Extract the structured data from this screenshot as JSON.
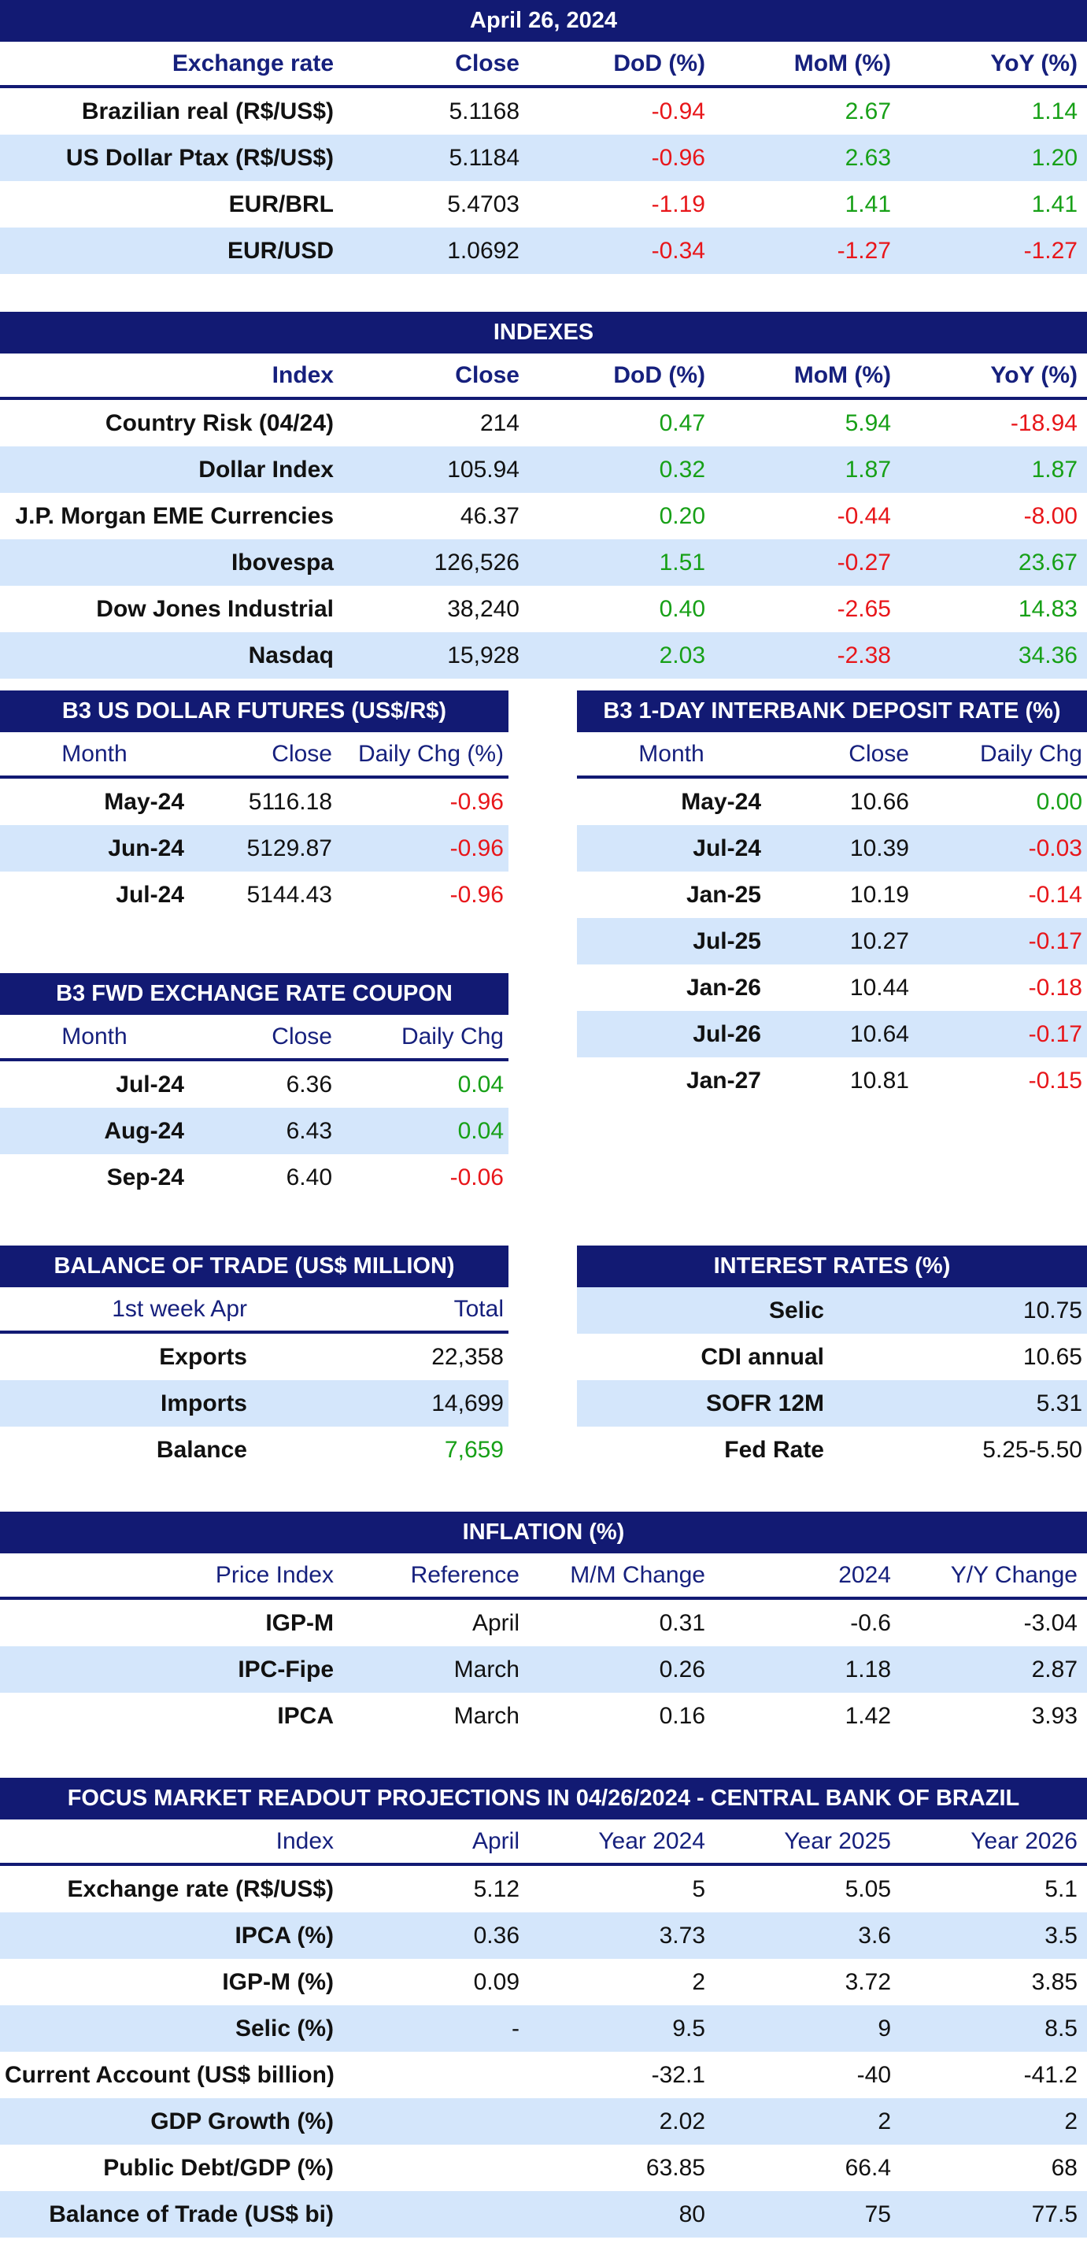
{
  "colors": {
    "header_bg": "#121a73",
    "row_alt": "#d4e6fb",
    "negative": "#e8161a",
    "positive": "#17a017"
  },
  "exchange": {
    "title": "April 26, 2024",
    "headers": [
      "Exchange rate",
      "Close",
      "DoD (%)",
      "MoM (%)",
      "YoY (%)"
    ],
    "rows": [
      [
        "Brazilian real (R$/US$)",
        "5.1168",
        "-0.94",
        "2.67",
        "1.14"
      ],
      [
        "US Dollar Ptax (R$/US$)",
        "5.1184",
        "-0.96",
        "2.63",
        "1.20"
      ],
      [
        "EUR/BRL",
        "5.4703",
        "-1.19",
        "1.41",
        "1.41"
      ],
      [
        "EUR/USD",
        "1.0692",
        "-0.34",
        "-1.27",
        "-1.27"
      ]
    ]
  },
  "indexes": {
    "title": "INDEXES",
    "headers": [
      "Index",
      "Close",
      "DoD (%)",
      "MoM (%)",
      "YoY (%)"
    ],
    "rows": [
      [
        "Country Risk (04/24)",
        "214",
        "0.47",
        "5.94",
        "-18.94"
      ],
      [
        "Dollar Index",
        "105.94",
        "0.32",
        "1.87",
        "1.87"
      ],
      [
        "J.P. Morgan EME Currencies",
        "46.37",
        "0.20",
        "-0.44",
        "-8.00"
      ],
      [
        "Ibovespa",
        "126,526",
        "1.51",
        "-0.27",
        "23.67"
      ],
      [
        "Dow Jones Industrial",
        "38,240",
        "0.40",
        "-2.65",
        "14.83"
      ],
      [
        "Nasdaq",
        "15,928",
        "2.03",
        "-2.38",
        "34.36"
      ]
    ]
  },
  "usd_futures": {
    "title": "B3 US DOLLAR FUTURES (US$/R$)",
    "headers": [
      "Month",
      "Close",
      "Daily Chg (%)"
    ],
    "rows": [
      [
        "May-24",
        "5116.18",
        "-0.96"
      ],
      [
        "Jun-24",
        "5129.87",
        "-0.96"
      ],
      [
        "Jul-24",
        "5144.43",
        "-0.96"
      ]
    ]
  },
  "di_rate": {
    "title": "B3 1-DAY INTERBANK DEPOSIT RATE (%)",
    "headers": [
      "Month",
      "Close",
      "Daily Chg"
    ],
    "rows": [
      [
        "May-24",
        "10.66",
        "0.00"
      ],
      [
        "Jul-24",
        "10.39",
        "-0.03"
      ],
      [
        "Jan-25",
        "10.19",
        "-0.14"
      ],
      [
        "Jul-25",
        "10.27",
        "-0.17"
      ],
      [
        "Jan-26",
        "10.44",
        "-0.18"
      ],
      [
        "Jul-26",
        "10.64",
        "-0.17"
      ],
      [
        "Jan-27",
        "10.81",
        "-0.15"
      ]
    ]
  },
  "fwd_coupon": {
    "title": "B3 FWD EXCHANGE RATE COUPON",
    "headers": [
      "Month",
      "Close",
      "Daily Chg"
    ],
    "rows": [
      [
        "Jul-24",
        "6.36",
        "0.04"
      ],
      [
        "Aug-24",
        "6.43",
        "0.04"
      ],
      [
        "Sep-24",
        "6.40",
        "-0.06"
      ]
    ]
  },
  "trade": {
    "title": "BALANCE OF TRADE (US$ MILLION)",
    "headers": [
      "1st week Apr",
      "Total"
    ],
    "rows": [
      [
        "Exports",
        "22,358"
      ],
      [
        "Imports",
        "14,699"
      ],
      [
        "Balance",
        "7,659"
      ]
    ]
  },
  "interest": {
    "title": "INTEREST RATES (%)",
    "rows": [
      [
        "Selic",
        "10.75"
      ],
      [
        "CDI annual",
        "10.65"
      ],
      [
        "SOFR 12M",
        "5.31"
      ],
      [
        "Fed Rate",
        "5.25-5.50"
      ]
    ]
  },
  "inflation": {
    "title": "INFLATION (%)",
    "headers": [
      "Price Index",
      "Reference",
      "M/M Change",
      "2024",
      "Y/Y Change"
    ],
    "rows": [
      [
        "IGP-M",
        "April",
        "0.31",
        "-0.6",
        "-3.04"
      ],
      [
        "IPC-Fipe",
        "March",
        "0.26",
        "1.18",
        "2.87"
      ],
      [
        "IPCA",
        "March",
        "0.16",
        "1.42",
        "3.93"
      ]
    ]
  },
  "focus": {
    "title": "FOCUS MARKET READOUT PROJECTIONS IN 04/26/2024 - CENTRAL BANK OF BRAZIL",
    "headers": [
      "Index",
      "April",
      "Year 2024",
      "Year 2025",
      "Year 2026"
    ],
    "rows": [
      [
        "Exchange rate (R$/US$)",
        "5.12",
        "5",
        "5.05",
        "5.1"
      ],
      [
        "IPCA (%)",
        "0.36",
        "3.73",
        "3.6",
        "3.5"
      ],
      [
        "IGP-M (%)",
        "0.09",
        "2",
        "3.72",
        "3.85"
      ],
      [
        "Selic (%)",
        "-",
        "9.5",
        "9",
        "8.5"
      ],
      [
        "Current Account (US$ billion)",
        "",
        "-32.1",
        "-40",
        "-41.2"
      ],
      [
        "GDP Growth (%)",
        "",
        "2.02",
        "2",
        "2"
      ],
      [
        "Public Debt/GDP (%)",
        "",
        "63.85",
        "66.4",
        "68"
      ],
      [
        "Balance of Trade (US$ bi)",
        "",
        "80",
        "75",
        "77.5"
      ]
    ]
  }
}
